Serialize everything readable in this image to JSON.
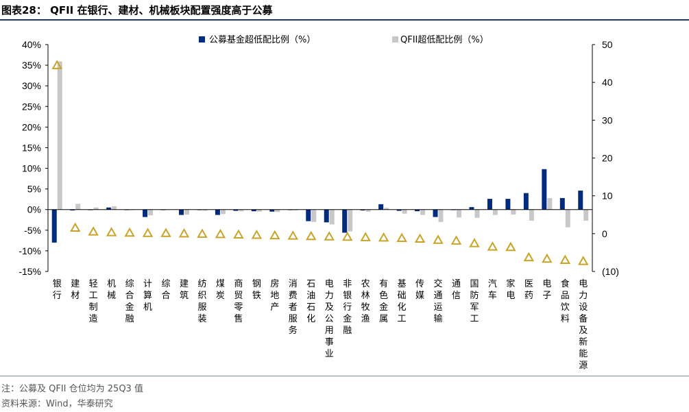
{
  "figure": {
    "title": "图表28：  QFII 在银行、建材、机械板块配置强度高于公募",
    "note": "注：公募及 QFII 仓位均为 25Q3 值",
    "source": "资料来源：Wind，华泰研究"
  },
  "colors": {
    "fund": "#002b7f",
    "qfii": "#c8c8c8",
    "triangle": "#c9a227",
    "rule": "#1f3864"
  },
  "chart_data": {
    "type": "bar",
    "categories": [
      "银行",
      "建材",
      "轻工制造",
      "机械",
      "综合金融",
      "计算机",
      "综合",
      "建筑",
      "纺织服装",
      "煤炭",
      "商贸零售",
      "钢铁",
      "房地产",
      "消费者服务",
      "石油石化",
      "电力及公用事业",
      "非银行金融",
      "农林牧渔",
      "有色金属",
      "基础化工",
      "传媒",
      "交通运输",
      "通信",
      "国防军工",
      "汽车",
      "家电",
      "医药",
      "电子",
      "食品饮料",
      "电力设备及新能源"
    ],
    "series": [
      {
        "name": "公募基金超低配比例（%）",
        "axis": "left",
        "unit": "percent",
        "values": [
          -8.0,
          -0.2,
          -0.1,
          0.5,
          -0.1,
          -1.8,
          -0.1,
          -1.3,
          -0.1,
          -1.3,
          -0.3,
          -0.4,
          -0.5,
          -0.1,
          -2.8,
          -3.1,
          -5.6,
          -0.2,
          1.3,
          -0.3,
          -0.4,
          -1.8,
          -0.1,
          0.6,
          2.6,
          2.6,
          4.0,
          9.8,
          2.8,
          4.6
        ]
      },
      {
        "name": "QFII超低配比例（%）",
        "axis": "left",
        "unit": "percent",
        "values": [
          35.9,
          1.4,
          0.5,
          0.8,
          -0.1,
          -1.4,
          -0.1,
          -1.2,
          -0.3,
          -1.1,
          -0.4,
          -0.5,
          -0.6,
          -0.2,
          -3.0,
          -3.6,
          -5.3,
          -0.5,
          0.4,
          -1.0,
          -1.3,
          -3.0,
          -1.9,
          -2.0,
          -1.3,
          -1.2,
          -2.7,
          2.8,
          -4.3,
          -2.7
        ]
      },
      {
        "name": "",
        "axis": "right",
        "marker": "triangle",
        "values": [
          44.5,
          1.5,
          0.5,
          0.3,
          0.2,
          0.1,
          0.1,
          0.0,
          -0.1,
          -0.2,
          -0.3,
          -0.4,
          -0.5,
          -0.6,
          -0.7,
          -0.8,
          -0.9,
          -1.0,
          -1.1,
          -1.2,
          -1.4,
          -1.7,
          -1.9,
          -2.6,
          -3.5,
          -3.6,
          -6.3,
          -6.7,
          -7.0,
          -7.3
        ]
      }
    ],
    "y_left": {
      "min": -15,
      "max": 40,
      "step": 5,
      "ticks": [
        "40%",
        "35%",
        "30%",
        "25%",
        "20%",
        "15%",
        "10%",
        "5%",
        "0%",
        "-5%",
        "-10%",
        "-15%"
      ]
    },
    "y_right": {
      "min": -10,
      "max": 50,
      "step": 10,
      "ticks": [
        "50",
        "40",
        "30",
        "20",
        "10",
        "0",
        "(10)"
      ]
    },
    "legend": {
      "position": "top",
      "items": [
        "公募基金超低配比例（%）",
        "QFII超低配比例（%）"
      ]
    },
    "grid": false
  }
}
